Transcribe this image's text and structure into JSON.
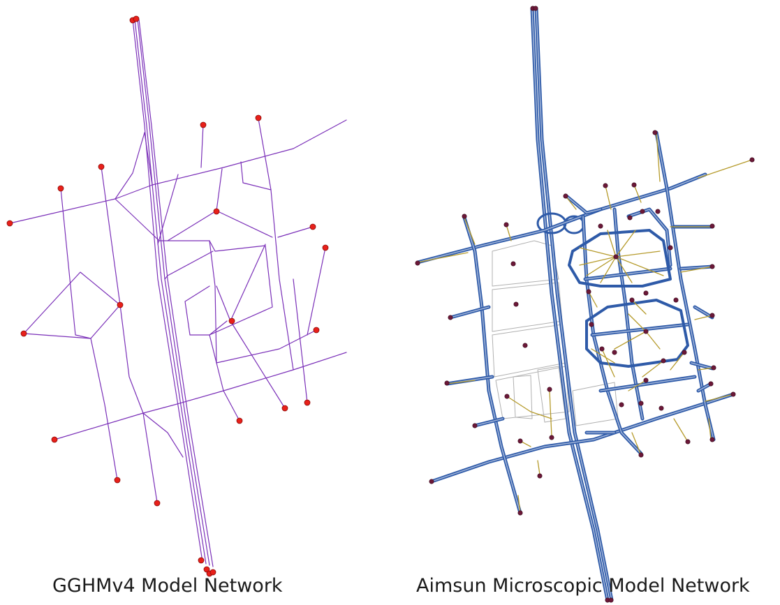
{
  "captions": {
    "left": "GGHMv4 Model Network",
    "right": "Aimsun Microscopic Model Network"
  },
  "colors": {
    "gghm_link": "#7a2fb8",
    "gghm_node": "#e8201a",
    "gghm_node_outline": "#8a0a08",
    "aimsun_road": "#2e5aa8",
    "aimsun_road_inner": "#9fb3d8",
    "aimsun_connector": "#b59a2a",
    "aimsun_centroid": "#6b1838",
    "aimsun_parcel": "#b0b0b0"
  },
  "icons": {
    "gghm_node": "zone-centroid-dot",
    "aimsun_centroid": "centroid-dot"
  }
}
